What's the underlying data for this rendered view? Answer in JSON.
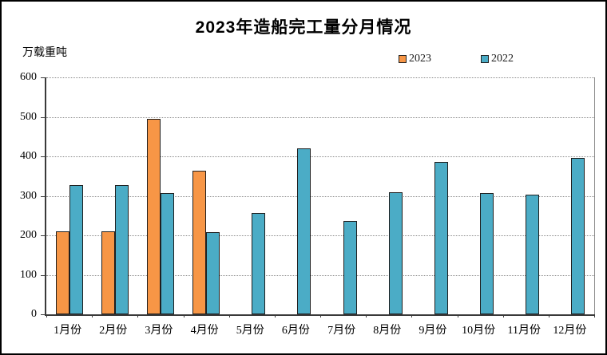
{
  "chart_data": {
    "type": "bar",
    "title": "2023年造船完工量分月情况",
    "ylabel": "万载重吨",
    "xlabel": "",
    "categories": [
      "1月份",
      "2月份",
      "3月份",
      "4月份",
      "5月份",
      "6月份",
      "7月份",
      "8月份",
      "9月份",
      "10月份",
      "11月份",
      "12月份"
    ],
    "series": [
      {
        "name": "2023",
        "color": "#F79646",
        "values": [
          210,
          211,
          495,
          364,
          null,
          null,
          null,
          null,
          null,
          null,
          null,
          null
        ]
      },
      {
        "name": "2022",
        "color": "#4BACC6",
        "values": [
          327,
          328,
          308,
          209,
          257,
          421,
          236,
          310,
          386,
          307,
          303,
          396
        ]
      }
    ],
    "ylim": [
      0,
      600
    ],
    "ytick_interval": 100,
    "yticks": [
      0,
      100,
      200,
      300,
      400,
      500,
      600
    ],
    "grid": "horizontal-dotted",
    "legend_position": "top-right"
  },
  "colors": {
    "series_2023": "#F79646",
    "series_2022": "#4BACC6",
    "bar_border": "#1f1f1f",
    "gridline": "#8c8c8c",
    "axis": "#3a3a3a",
    "text": "#000000",
    "background": "#ffffff",
    "frame_border": "#000000"
  }
}
